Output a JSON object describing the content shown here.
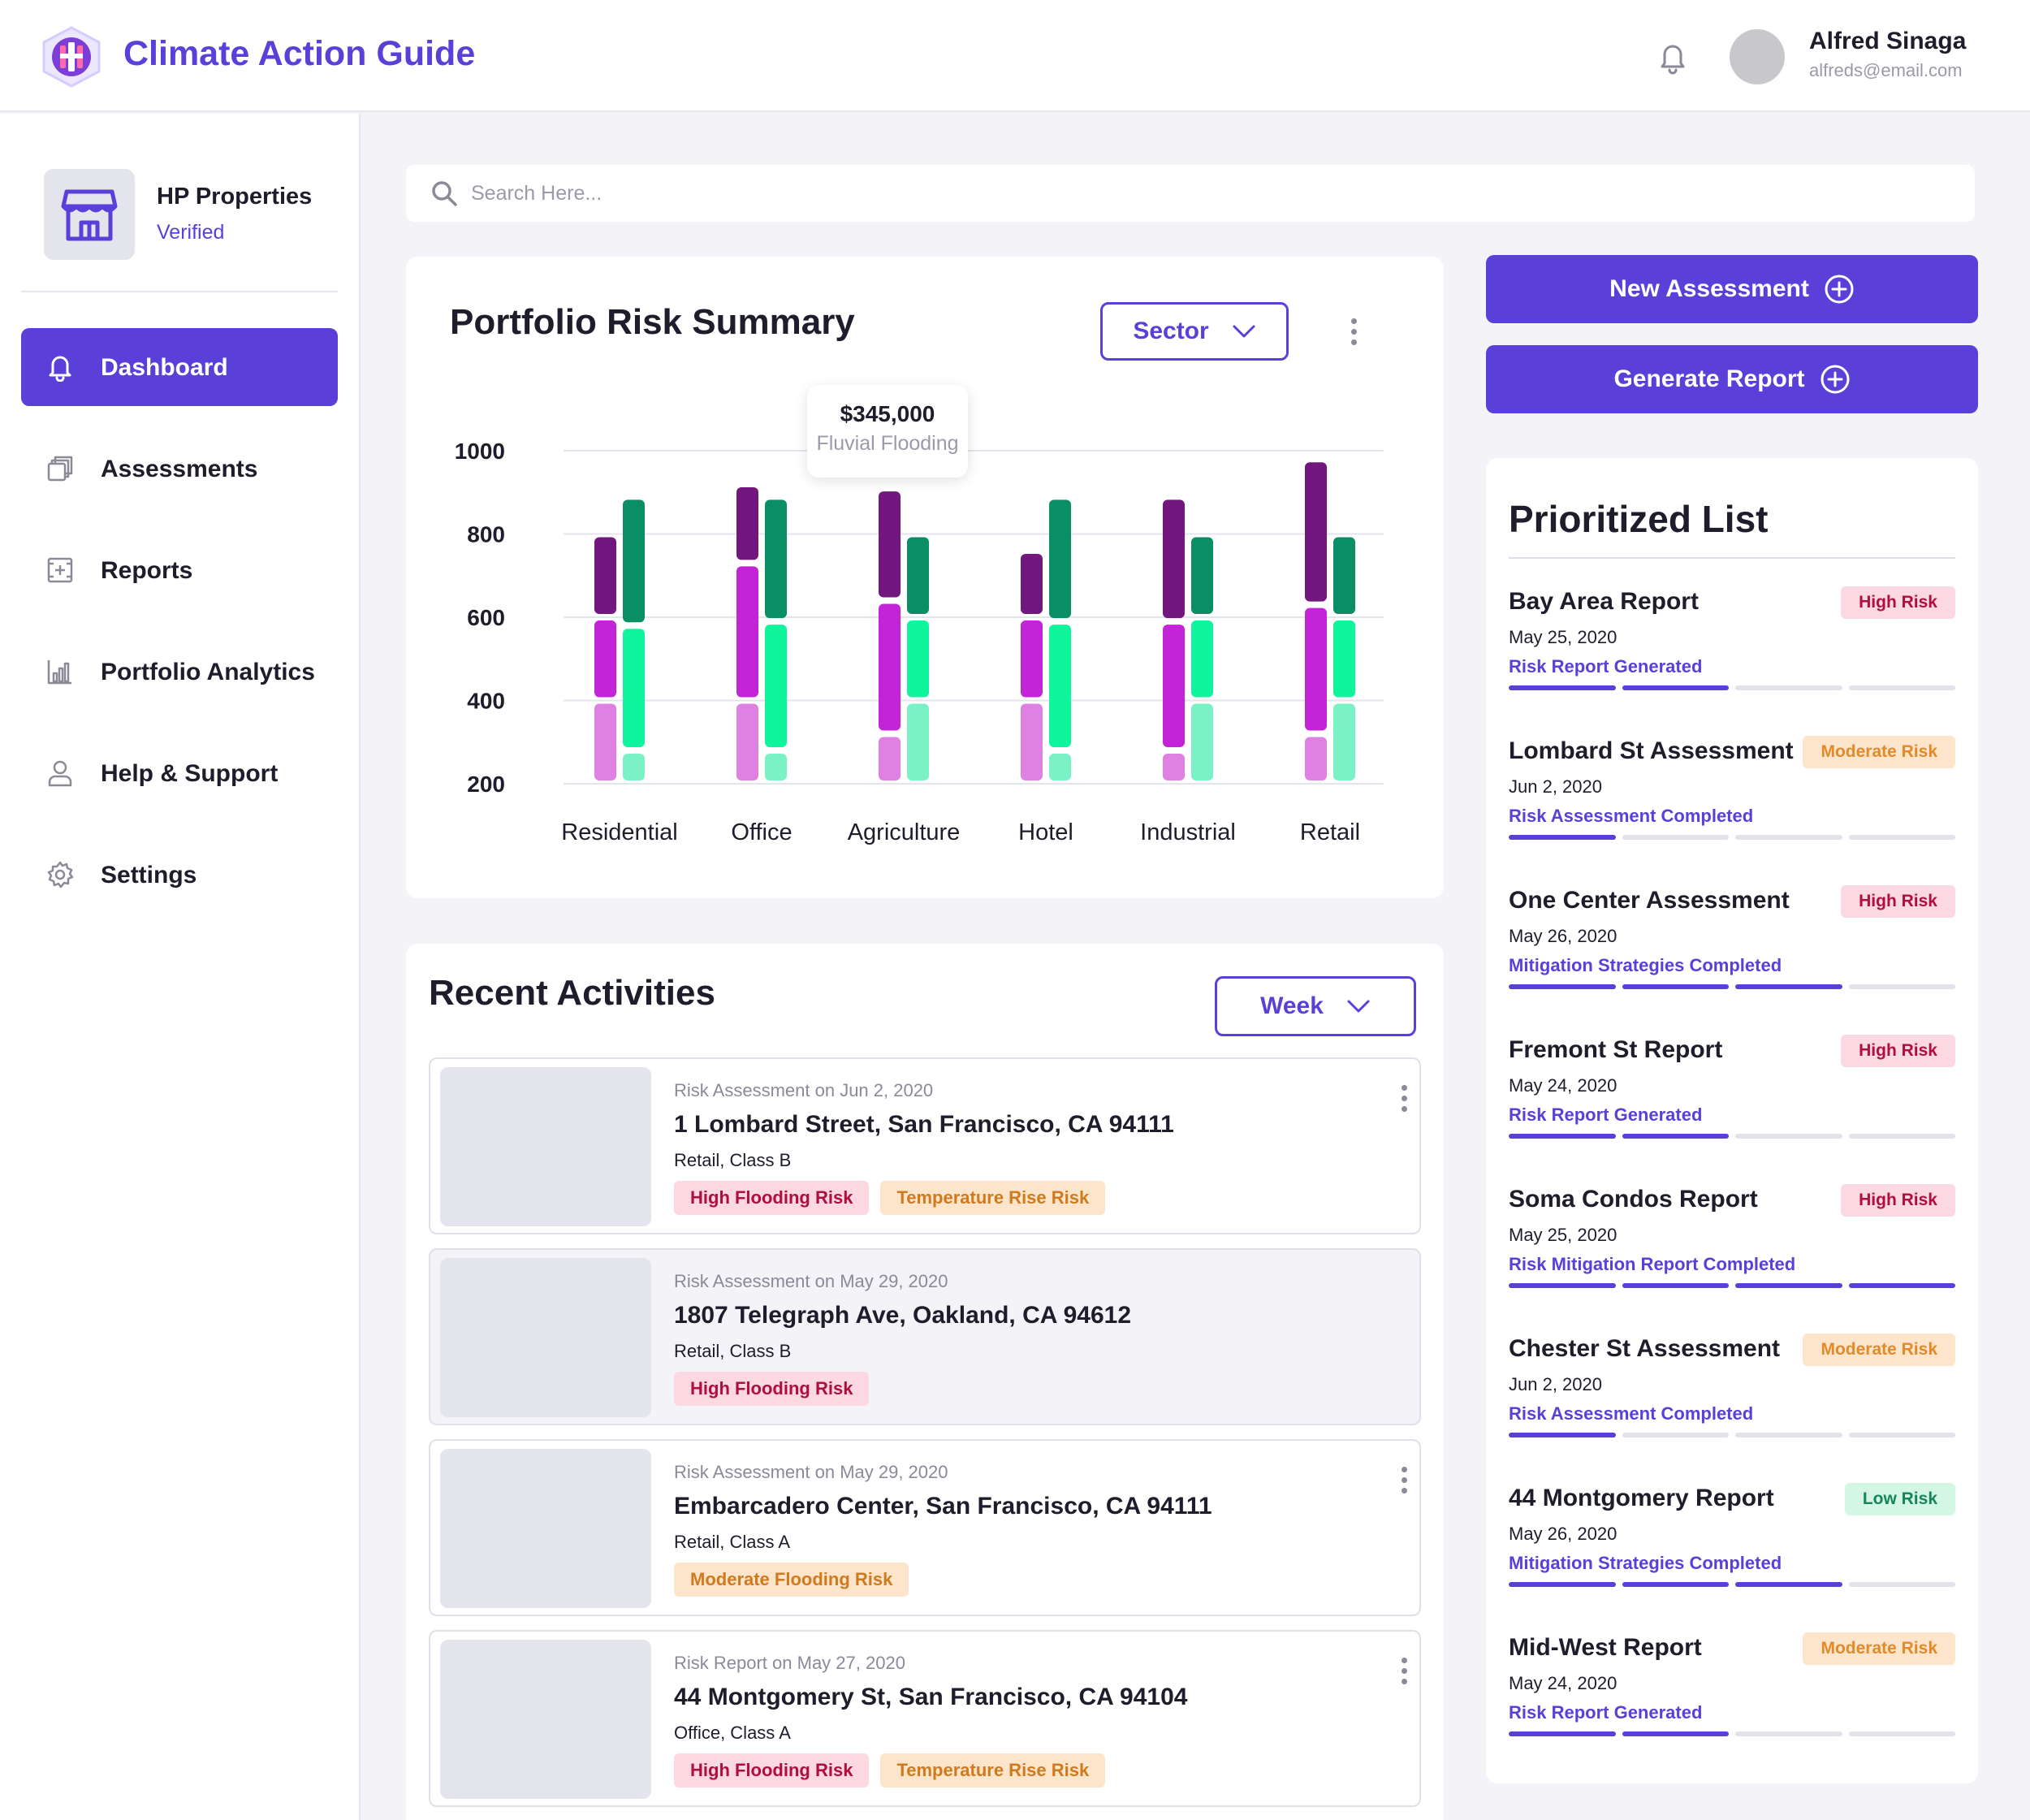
{
  "header": {
    "app_title": "Climate Action Guide",
    "user_name": "Alfred Sinaga",
    "user_email": "alfreds@email.com"
  },
  "sidebar": {
    "org_name": "HP Properties",
    "org_status": "Verified",
    "items": [
      {
        "label": "Dashboard",
        "icon": "bell-icon",
        "active": true
      },
      {
        "label": "Assessments",
        "icon": "copy-icon",
        "active": false
      },
      {
        "label": "Reports",
        "icon": "report-icon",
        "active": false
      },
      {
        "label": "Portfolio Analytics",
        "icon": "analytics-icon",
        "active": false
      },
      {
        "label": "Help & Support",
        "icon": "user-icon",
        "active": false
      },
      {
        "label": "Settings",
        "icon": "gear-icon",
        "active": false
      }
    ]
  },
  "search": {
    "placeholder": "Search Here..."
  },
  "portfolio": {
    "title": "Portfolio Risk Summary",
    "filter_label": "Sector",
    "tooltip_value": "$345,000",
    "tooltip_label": "Fluvial Flooding"
  },
  "chart_data": {
    "type": "bar",
    "stacked": true,
    "categories": [
      "Residential",
      "Office",
      "Agriculture",
      "Hotel",
      "Industrial",
      "Retail"
    ],
    "ylim": [
      200,
      1000
    ],
    "yticks": [
      1000,
      800,
      600,
      400,
      200
    ],
    "grid": true,
    "groups": [
      {
        "color_bottom": "#df80e3",
        "color_middle": "#c424d8",
        "color_top": "#72177e",
        "stacks": [
          [
            200,
            400,
            600,
            800
          ],
          [
            200,
            400,
            730,
            920
          ],
          [
            200,
            320,
            640,
            910
          ],
          [
            200,
            400,
            600,
            760
          ],
          [
            200,
            280,
            590,
            890
          ],
          [
            200,
            320,
            630,
            980
          ]
        ]
      },
      {
        "color_bottom": "#7bf2c6",
        "color_middle": "#0ef59b",
        "color_top": "#0a8e63",
        "stacks": [
          [
            200,
            280,
            580,
            890
          ],
          [
            200,
            280,
            590,
            890
          ],
          [
            200,
            400,
            600,
            800
          ],
          [
            200,
            280,
            590,
            890
          ],
          [
            200,
            400,
            600,
            800
          ],
          [
            200,
            400,
            600,
            800
          ]
        ]
      }
    ]
  },
  "actions": {
    "new_assessment": "New Assessment",
    "generate_report": "Generate Report"
  },
  "prioritized": {
    "title": "Prioritized List",
    "items": [
      {
        "name": "Bay Area Report",
        "badge": "High Risk",
        "level": "high",
        "date": "May 25, 2020",
        "status": "Risk Report Generated",
        "progress": 2
      },
      {
        "name": "Lombard St Assessment",
        "badge": "Moderate Risk",
        "level": "moderate",
        "date": "Jun 2, 2020",
        "status": "Risk Assessment Completed",
        "progress": 1
      },
      {
        "name": "One Center Assessment",
        "badge": "High Risk",
        "level": "high",
        "date": "May 26, 2020",
        "status": "Mitigation Strategies Completed",
        "progress": 3
      },
      {
        "name": "Fremont St Report",
        "badge": "High Risk",
        "level": "high",
        "date": "May 24, 2020",
        "status": "Risk Report Generated",
        "progress": 2
      },
      {
        "name": "Soma Condos Report",
        "badge": "High Risk",
        "level": "high",
        "date": "May 25, 2020",
        "status": "Risk Mitigation Report Completed",
        "progress": 4
      },
      {
        "name": "Chester St Assessment",
        "badge": "Moderate Risk",
        "level": "moderate",
        "date": "Jun 2, 2020",
        "status": "Risk Assessment Completed",
        "progress": 1
      },
      {
        "name": "44 Montgomery Report",
        "badge": "Low Risk",
        "level": "low",
        "date": "May 26, 2020",
        "status": "Mitigation Strategies Completed",
        "progress": 3
      },
      {
        "name": "Mid-West Report",
        "badge": "Moderate Risk",
        "level": "moderate",
        "date": "May 24, 2020",
        "status": "Risk Report Generated",
        "progress": 2
      }
    ]
  },
  "activities": {
    "title": "Recent Activities",
    "filter_label": "Week",
    "items": [
      {
        "meta": "Risk Assessment on Jun 2, 2020",
        "title": "1 Lombard Street, San Francisco, CA 94111",
        "class": "Retail, Class B",
        "tags": [
          {
            "label": "High Flooding Risk",
            "tone": "pink"
          },
          {
            "label": "Temperature Rise Risk",
            "tone": "orange"
          }
        ]
      },
      {
        "meta": "Risk Assessment on May 29, 2020",
        "title": "1807 Telegraph Ave, Oakland, CA 94612",
        "class": "Retail, Class B",
        "tags": [
          {
            "label": "High Flooding Risk",
            "tone": "pink"
          }
        ]
      },
      {
        "meta": "Risk Assessment on May 29, 2020",
        "title": "Embarcadero Center, San Francisco, CA 94111",
        "class": "Retail, Class A",
        "tags": [
          {
            "label": "Moderate Flooding Risk",
            "tone": "orange"
          }
        ]
      },
      {
        "meta": "Risk Report on May 27, 2020",
        "title": "44 Montgomery St, San Francisco, CA 94104",
        "class": "Office, Class A",
        "tags": [
          {
            "label": "High Flooding Risk",
            "tone": "pink"
          },
          {
            "label": "Temperature Rise Risk",
            "tone": "orange"
          }
        ]
      }
    ]
  },
  "colors": {
    "accent": "#5a3fd8",
    "high": "#b00f3e",
    "moderate": "#e28a2a",
    "low": "#16855a"
  }
}
